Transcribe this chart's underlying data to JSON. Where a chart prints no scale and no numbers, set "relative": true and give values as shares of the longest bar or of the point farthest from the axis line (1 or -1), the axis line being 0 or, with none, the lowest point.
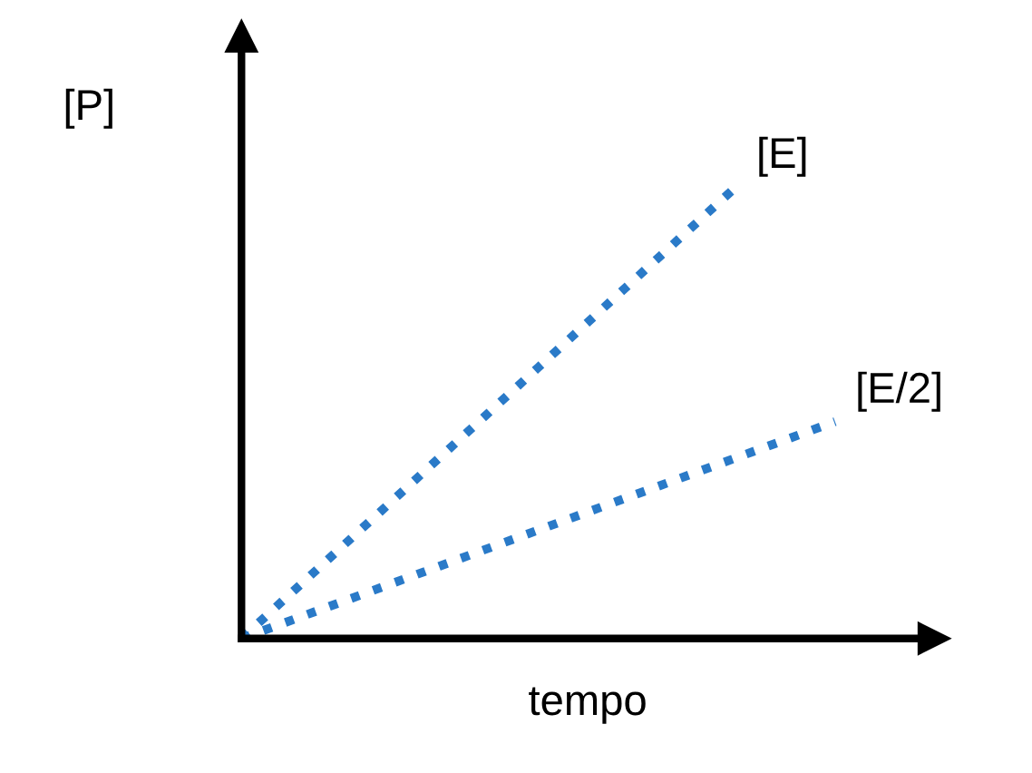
{
  "chart_data": {
    "type": "line",
    "relative": true,
    "xlabel": "tempo",
    "ylabel": "[P]",
    "categories": [
      null,
      null,
      null,
      null,
      null,
      null,
      null
    ],
    "tick_labels": false,
    "line_style": "dotted",
    "marker": "none",
    "legend": false,
    "series": [
      {
        "name": "[E]",
        "color": "#2a7ac8",
        "values": [
          0,
          0.2,
          0.4,
          0.6,
          0.8,
          1,
          null
        ]
      },
      {
        "name": "[E/2]",
        "color": "#2a7ac8",
        "values": [
          0,
          0.08,
          0.16,
          0.24,
          0.32,
          0.4,
          0.48
        ]
      }
    ]
  }
}
